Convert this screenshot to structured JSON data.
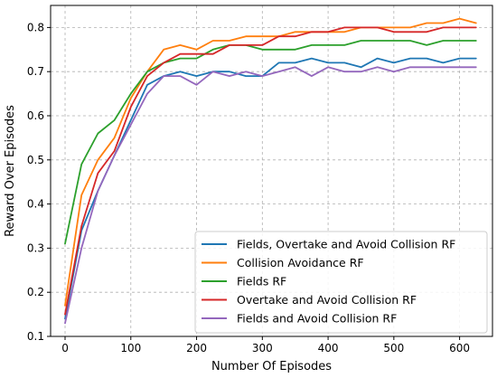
{
  "chart_data": {
    "type": "line",
    "title": "",
    "xlabel": "Number Of Episodes",
    "ylabel": "Reward Over Episodes",
    "xlim": [
      -22,
      650
    ],
    "ylim": [
      0.1,
      0.85
    ],
    "xticks": [
      0,
      100,
      200,
      300,
      400,
      500,
      600
    ],
    "yticks": [
      0.1,
      0.2,
      0.3,
      0.4,
      0.5,
      0.6,
      0.7,
      0.8
    ],
    "xtick_labels": [
      "0",
      "100",
      "200",
      "300",
      "400",
      "500",
      "600"
    ],
    "ytick_labels": [
      "0.1",
      "0.2",
      "0.3",
      "0.4",
      "0.5",
      "0.6",
      "0.7",
      "0.8"
    ],
    "grid": true,
    "legend_position": "lower-right",
    "x": [
      0,
      25,
      50,
      75,
      100,
      125,
      150,
      175,
      200,
      225,
      250,
      275,
      300,
      325,
      350,
      375,
      400,
      425,
      450,
      475,
      500,
      525,
      550,
      575,
      600,
      625
    ],
    "series": [
      {
        "name": "Fields, Overtake and Avoid Collision RF",
        "color": "#1f77b4",
        "values": [
          0.14,
          0.34,
          0.43,
          0.51,
          0.59,
          0.67,
          0.69,
          0.7,
          0.69,
          0.7,
          0.7,
          0.69,
          0.69,
          0.72,
          0.72,
          0.73,
          0.72,
          0.72,
          0.71,
          0.73,
          0.72,
          0.73,
          0.73,
          0.72,
          0.73,
          0.73
        ]
      },
      {
        "name": "Collision Avoidance RF",
        "color": "#ff7f0e",
        "values": [
          0.17,
          0.42,
          0.5,
          0.55,
          0.64,
          0.7,
          0.75,
          0.76,
          0.75,
          0.77,
          0.77,
          0.78,
          0.78,
          0.78,
          0.79,
          0.79,
          0.79,
          0.79,
          0.8,
          0.8,
          0.8,
          0.8,
          0.81,
          0.81,
          0.82,
          0.81
        ]
      },
      {
        "name": "Fields RF",
        "color": "#2ca02c",
        "values": [
          0.31,
          0.49,
          0.56,
          0.59,
          0.65,
          0.7,
          0.72,
          0.73,
          0.73,
          0.75,
          0.76,
          0.76,
          0.75,
          0.75,
          0.75,
          0.76,
          0.76,
          0.76,
          0.77,
          0.77,
          0.77,
          0.77,
          0.76,
          0.77,
          0.77,
          0.77
        ]
      },
      {
        "name": "Overtake and Avoid Collision RF",
        "color": "#d62728",
        "values": [
          0.15,
          0.35,
          0.47,
          0.52,
          0.62,
          0.69,
          0.72,
          0.74,
          0.74,
          0.74,
          0.76,
          0.76,
          0.76,
          0.78,
          0.78,
          0.79,
          0.79,
          0.8,
          0.8,
          0.8,
          0.79,
          0.79,
          0.79,
          0.8,
          0.8,
          0.8
        ]
      },
      {
        "name": "Fields and Avoid Collision RF",
        "color": "#9467bd",
        "values": [
          0.13,
          0.3,
          0.43,
          0.51,
          0.58,
          0.65,
          0.69,
          0.69,
          0.67,
          0.7,
          0.69,
          0.7,
          0.69,
          0.7,
          0.71,
          0.69,
          0.71,
          0.7,
          0.7,
          0.71,
          0.7,
          0.71,
          0.71,
          0.71,
          0.71,
          0.71
        ]
      }
    ]
  }
}
